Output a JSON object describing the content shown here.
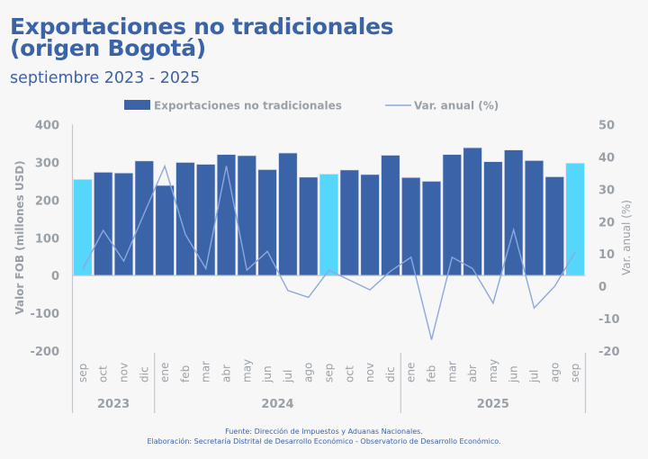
{
  "header": {
    "title_line1": "Exportaciones no tradicionales",
    "title_line2": "(origen Bogotá)",
    "subtitle": "septiembre 2023 - 2025"
  },
  "footer": {
    "source": "Fuente: Dirección de Impuestos y Aduanas Nacionales.",
    "credit": "Elaboración: Secretaría Distrital de Desarrollo Económico - Observatorio de Desarrollo Económico."
  },
  "colors": {
    "bar": "#3a63a8",
    "bar_highlight": "#55d6fc",
    "line": "#8ca8dc",
    "title": "#3a63a8",
    "axis_text": "#9aa0a8"
  },
  "chart_data": {
    "type": "bar",
    "title": "Exportaciones no tradicionales (origen Bogotá)",
    "subtitle": "septiembre 2023 - 2025",
    "categories": [
      "sep",
      "oct",
      "nov",
      "dic",
      "ene",
      "feb",
      "mar",
      "abr",
      "may",
      "jun",
      "jul",
      "ago",
      "sep",
      "oct",
      "nov",
      "dic",
      "ene",
      "feb",
      "mar",
      "abr",
      "may",
      "jun",
      "jul",
      "ago",
      "sep"
    ],
    "year_groups": [
      {
        "label": "2023",
        "count": 4
      },
      {
        "label": "2024",
        "count": 12
      },
      {
        "label": "2025",
        "count": 9
      }
    ],
    "highlighted_indices": [
      0,
      12,
      24
    ],
    "series": [
      {
        "name": "Exportaciones no tradicionales",
        "type": "bar",
        "axis": "left",
        "values": [
          255,
          274,
          272,
          304,
          239,
          300,
          295,
          321,
          318,
          281,
          325,
          261,
          269,
          280,
          268,
          319,
          260,
          250,
          321,
          339,
          302,
          333,
          305,
          262,
          298
        ]
      },
      {
        "name": "Var. anual (%)",
        "type": "line",
        "axis": "right",
        "values": [
          5.3,
          17.3,
          7.8,
          22.6,
          37.2,
          16.1,
          5.5,
          37.2,
          5.0,
          10.8,
          -1.3,
          -3.4,
          5.0,
          1.9,
          -1.1,
          4.7,
          9.0,
          -16.5,
          9.0,
          5.5,
          -5.2,
          17.5,
          -6.7,
          0.0,
          10.6
        ]
      }
    ],
    "ylabel": "Valor FOB (millones USD)",
    "ylim": [
      -200,
      400
    ],
    "yticks": [
      400,
      300,
      200,
      100,
      0,
      -100,
      -200
    ],
    "y2label": "Var. anual (%)",
    "y2lim": [
      -20,
      50
    ],
    "y2ticks": [
      50,
      40,
      30,
      20,
      10,
      0,
      -10,
      -20
    ],
    "legend_position": "top",
    "grid": false
  }
}
